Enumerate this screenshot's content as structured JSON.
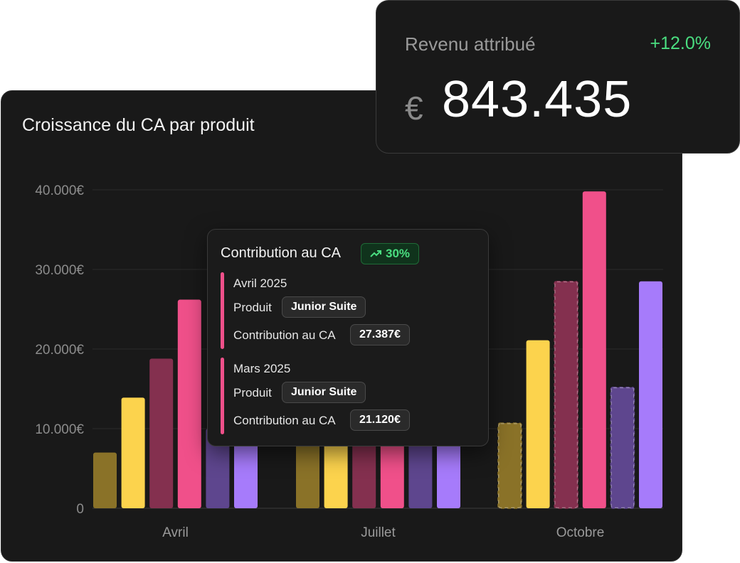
{
  "kpi": {
    "label": "Revenu attribué",
    "change": "+12.0%",
    "currency": "€",
    "value": "843.435"
  },
  "chart_data": {
    "type": "bar",
    "title": "Croissance du CA par produit",
    "xlabel": "",
    "ylabel": "",
    "categories": [
      "Avril",
      "Juillet",
      "Octobre"
    ],
    "y_ticks": [
      "0",
      "10.000€",
      "20.000€",
      "30.000€",
      "40.000€"
    ],
    "ylim": [
      0,
      40000
    ],
    "grid": true,
    "series": [
      {
        "color": "#8a7228",
        "values": [
          7000,
          8000,
          10700
        ],
        "dashed": [
          false,
          false,
          true
        ]
      },
      {
        "color": "#fcd34d",
        "values": [
          13900,
          9000,
          21100
        ],
        "dashed": [
          false,
          false,
          false
        ]
      },
      {
        "color": "#84304f",
        "values": [
          18800,
          8500,
          28500
        ],
        "dashed": [
          false,
          false,
          true
        ]
      },
      {
        "color": "#f0508a",
        "values": [
          26200,
          8500,
          39800
        ],
        "dashed": [
          false,
          false,
          false
        ]
      },
      {
        "color": "#5e468e",
        "values": [
          10000,
          8000,
          15200
        ],
        "dashed": [
          false,
          false,
          true
        ]
      },
      {
        "color": "#a67bfb",
        "values": [
          9800,
          8000,
          28500
        ],
        "dashed": [
          false,
          false,
          false
        ]
      }
    ]
  },
  "tooltip": {
    "title": "Contribution au CA",
    "badge": "30%",
    "entries": [
      {
        "period": "Avril 2025",
        "product_label": "Produit",
        "product": "Junior Suite",
        "contribution_label": "Contribution au CA",
        "contribution": "27.387€"
      },
      {
        "period": "Mars 2025",
        "product_label": "Produit",
        "product": "Junior Suite",
        "contribution_label": "Contribution au CA",
        "contribution": "21.120€"
      }
    ]
  }
}
